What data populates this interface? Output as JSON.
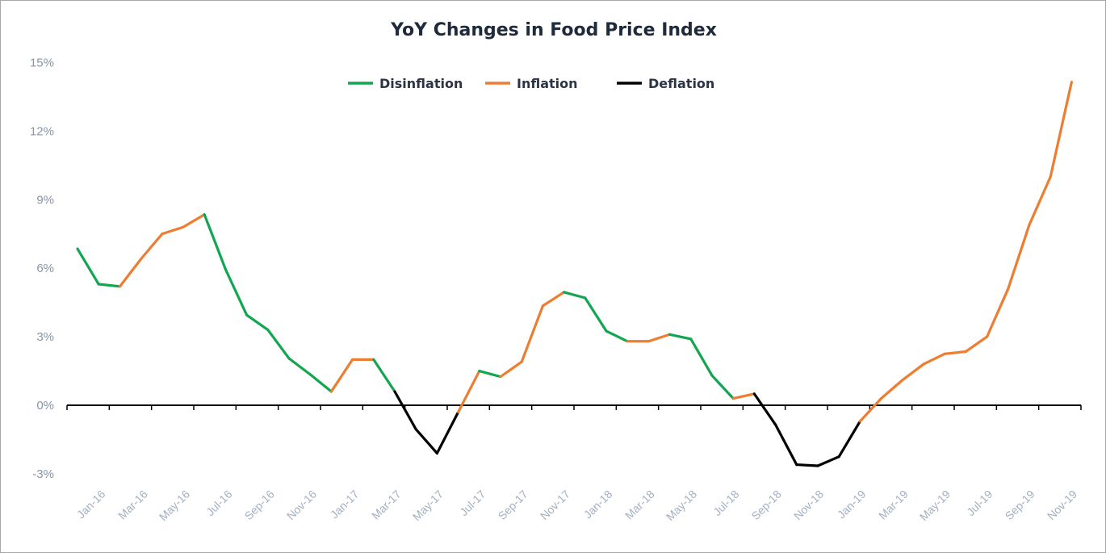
{
  "chart_data": {
    "type": "line",
    "title": "YoY Changes in Food Price Index",
    "xlabel": "",
    "ylabel": "",
    "ylim": [
      -3,
      15
    ],
    "yticks": [
      "-3%",
      "0%",
      "3%",
      "6%",
      "9%",
      "12%",
      "15%"
    ],
    "ytick_values": [
      -3,
      0,
      3,
      6,
      9,
      12,
      15
    ],
    "xtick_labels": [
      "Jan-16",
      "Mar-16",
      "May-16",
      "Jul-16",
      "Sep-16",
      "Nov-16",
      "Jan-17",
      "Mar-17",
      "May-17",
      "Jul-17",
      "Sep-17",
      "Nov-17",
      "Jan-18",
      "Mar-18",
      "May-18",
      "Jul-18",
      "Sep-18",
      "Nov-18",
      "Jan-19",
      "Mar-19",
      "May-19",
      "Jul-19",
      "Sep-19",
      "Nov-19"
    ],
    "grid": false,
    "legend_position": "top-center",
    "legend": [
      {
        "name": "Disinflation",
        "color": "#12a650"
      },
      {
        "name": "Inflation",
        "color": "#ed7d31"
      },
      {
        "name": "Deflation",
        "color": "#000000"
      }
    ],
    "x": [
      "Jan-16",
      "Feb-16",
      "Mar-16",
      "Apr-16",
      "May-16",
      "Jun-16",
      "Jul-16",
      "Aug-16",
      "Sep-16",
      "Oct-16",
      "Nov-16",
      "Dec-16",
      "Jan-17",
      "Feb-17",
      "Mar-17",
      "Apr-17",
      "May-17",
      "Jun-17",
      "Jul-17",
      "Aug-17",
      "Sep-17",
      "Oct-17",
      "Nov-17",
      "Dec-17",
      "Jan-18",
      "Feb-18",
      "Mar-18",
      "Apr-18",
      "May-18",
      "Jun-18",
      "Jul-18",
      "Aug-18",
      "Sep-18",
      "Oct-18",
      "Nov-18",
      "Dec-18",
      "Jan-19",
      "Feb-19",
      "Mar-19",
      "Apr-19",
      "May-19",
      "Jun-19",
      "Jul-19",
      "Aug-19",
      "Sep-19",
      "Oct-19",
      "Nov-19",
      "Dec-19"
    ],
    "values": [
      6.85,
      5.3,
      5.2,
      6.4,
      7.5,
      7.8,
      8.35,
      5.95,
      3.95,
      3.3,
      2.05,
      1.35,
      0.6,
      2.0,
      2.0,
      0.6,
      -1.05,
      -2.1,
      -0.3,
      1.5,
      1.25,
      1.9,
      4.35,
      4.95,
      4.7,
      3.25,
      2.8,
      2.8,
      3.1,
      2.9,
      1.3,
      0.3,
      0.5,
      -0.85,
      -2.6,
      -2.65,
      -2.25,
      -0.7,
      0.3,
      1.1,
      1.8,
      2.25,
      2.35,
      3.0,
      5.1,
      7.9,
      10.0,
      14.15
    ],
    "regimes": [
      "disinflation",
      "disinflation",
      "disinflation",
      "inflation",
      "inflation",
      "inflation",
      "inflation",
      "disinflation",
      "disinflation",
      "disinflation",
      "disinflation",
      "disinflation",
      "disinflation",
      "inflation",
      "inflation",
      "disinflation",
      "deflation",
      "deflation",
      "deflation",
      "inflation",
      "disinflation",
      "inflation",
      "inflation",
      "inflation",
      "disinflation",
      "disinflation",
      "disinflation",
      "inflation",
      "inflation",
      "disinflation",
      "disinflation",
      "disinflation",
      "inflation",
      "deflation",
      "deflation",
      "deflation",
      "deflation",
      "deflation",
      "inflation",
      "inflation",
      "inflation",
      "inflation",
      "inflation",
      "inflation",
      "inflation",
      "inflation",
      "inflation",
      "inflation"
    ]
  }
}
